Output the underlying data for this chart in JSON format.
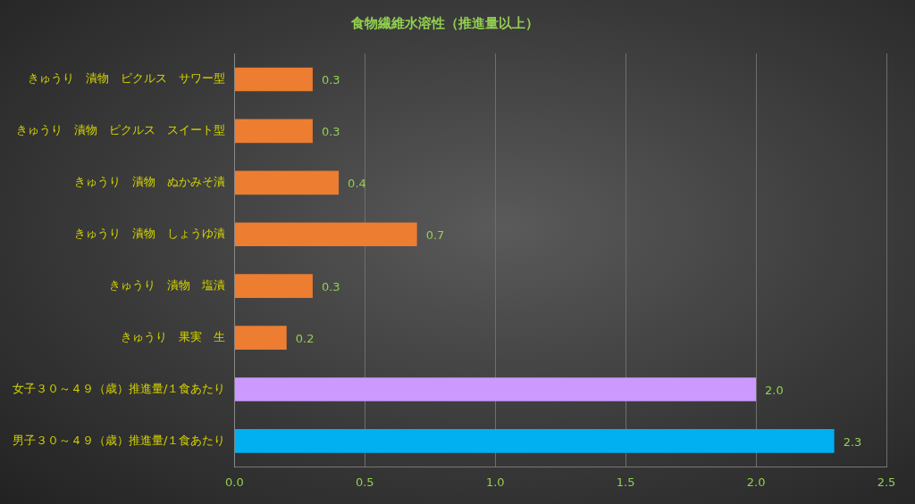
{
  "chart_data": {
    "type": "bar",
    "orientation": "horizontal",
    "title": "食物繊維水溶性（推進量以上）",
    "categories": [
      "きゅうり　漬物　ピクルス　サワー型",
      "きゅうり　漬物　ピクルス　スイート型",
      "きゅうり　漬物　ぬかみそ漬",
      "きゅうり　漬物　しょうゆ漬",
      "きゅうり　漬物　塩漬",
      "きゅうり　果実　生",
      "女子３０～４９（歳）推進量/１食あたり",
      "男子３０～４９（歳）推進量/１食あたり"
    ],
    "values": [
      0.3,
      0.3,
      0.4,
      0.7,
      0.3,
      0.2,
      2.0,
      2.3
    ],
    "colors": [
      "#ed7d31",
      "#ed7d31",
      "#ed7d31",
      "#ed7d31",
      "#ed7d31",
      "#ed7d31",
      "#cc99ff",
      "#00b0f0"
    ],
    "value_labels": [
      "0.3",
      "0.3",
      "0.4",
      "0.7",
      "0.3",
      "0.2",
      "2.0",
      "2.3"
    ],
    "xlim": [
      0,
      2.5
    ],
    "xticks": [
      {
        "value": 0,
        "label": "0.0"
      },
      {
        "value": 0.5,
        "label": "0.5"
      },
      {
        "value": 1,
        "label": "1.0"
      },
      {
        "value": 1.5,
        "label": "1.5"
      },
      {
        "value": 2,
        "label": "2.0"
      },
      {
        "value": 2.5,
        "label": "2.5"
      }
    ],
    "grid": "x",
    "legend": false
  }
}
